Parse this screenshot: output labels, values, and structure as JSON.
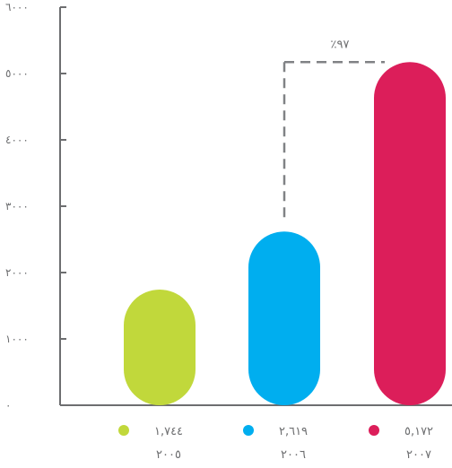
{
  "chart_data": {
    "type": "bar",
    "categories": [
      "٢٠٠٥",
      "٢٠٠٦",
      "٢٠٠٧"
    ],
    "values": [
      1744,
      2619,
      5172
    ],
    "value_labels": [
      "١,٧٤٤",
      "٢,٦١٩",
      "٥,١٧٢"
    ],
    "colors": [
      "#c1d83b",
      "#00aeef",
      "#dc1e5a"
    ],
    "ylim": [
      0,
      6000
    ],
    "yticks": [
      0,
      1000,
      2000,
      3000,
      4000,
      5000,
      6000
    ],
    "ytick_labels": [
      "٠",
      "١٠٠٠",
      "٢٠٠٠",
      "٣٠٠٠",
      "٤٠٠٠",
      "٥٠٠٠",
      "٦٠٠٠"
    ],
    "annotation": {
      "text": "٪٩٧",
      "from_category_index": 1,
      "to_category_index": 2
    },
    "legend_position": "bottom",
    "grid": false,
    "axis_color": "#6d6e70",
    "annotation_color": "#808285"
  }
}
